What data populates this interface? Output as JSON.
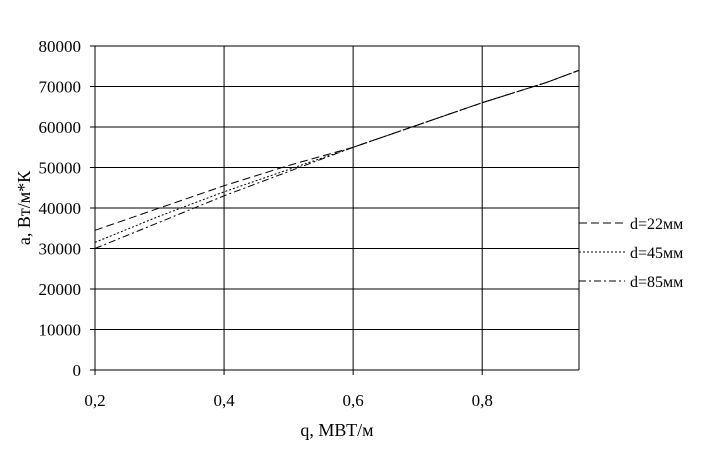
{
  "chart_data": {
    "type": "line",
    "title": "",
    "xlabel": "q, МВТ/м",
    "ylabel": "a, Вт/м*К",
    "xlim": [
      0.2,
      0.95
    ],
    "ylim": [
      0,
      80000
    ],
    "x_ticks": [
      0.2,
      0.4,
      0.6,
      0.8
    ],
    "x_tick_labels": [
      "0,2",
      "0,4",
      "0,6",
      "0,8"
    ],
    "y_ticks": [
      0,
      10000,
      20000,
      30000,
      40000,
      50000,
      60000,
      70000,
      80000
    ],
    "y_tick_labels": [
      "0",
      "10000",
      "20000",
      "30000",
      "40000",
      "50000",
      "60000",
      "70000",
      "80000"
    ],
    "grid": true,
    "legend_position": "right",
    "series": [
      {
        "name": "d=22мм",
        "dash": "dashed",
        "x": [
          0.2,
          0.3,
          0.4,
          0.5,
          0.6,
          0.7,
          0.8,
          0.9,
          0.95
        ],
        "y": [
          34500,
          40000,
          45500,
          50500,
          55000,
          60500,
          66000,
          71000,
          74000
        ]
      },
      {
        "name": "d=45мм",
        "dash": "dotted",
        "x": [
          0.2,
          0.3,
          0.4,
          0.5,
          0.6,
          0.7,
          0.8,
          0.9,
          0.95
        ],
        "y": [
          31500,
          38000,
          44000,
          49500,
          55000,
          60500,
          66000,
          71000,
          74000
        ]
      },
      {
        "name": "d=85мм",
        "dash": "dash-dot",
        "x": [
          0.2,
          0.3,
          0.4,
          0.5,
          0.6,
          0.7,
          0.8,
          0.9,
          0.95
        ],
        "y": [
          30000,
          36500,
          43000,
          49000,
          55000,
          60500,
          66000,
          71000,
          74000
        ]
      }
    ]
  }
}
